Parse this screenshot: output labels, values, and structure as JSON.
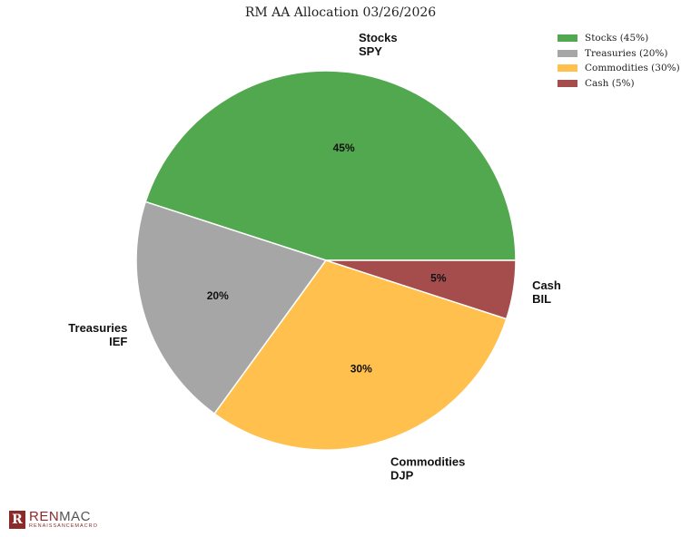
{
  "chart_data": {
    "type": "pie",
    "title": "RM AA Allocation 03/26/2026",
    "slices": [
      {
        "name": "Stocks",
        "ticker": "SPY",
        "value": 45,
        "pct_label": "45%",
        "legend": "Stocks (45%)",
        "color": "#52a84f"
      },
      {
        "name": "Treasuries",
        "ticker": "IEF",
        "value": 20,
        "pct_label": "20%",
        "legend": "Treasuries (20%)",
        "color": "#a6a6a6"
      },
      {
        "name": "Commodities",
        "ticker": "DJP",
        "value": 30,
        "pct_label": "30%",
        "legend": "Commodities (30%)",
        "color": "#ffc04d"
      },
      {
        "name": "Cash",
        "ticker": "BIL",
        "value": 5,
        "pct_label": "5%",
        "legend": "Cash (5%)",
        "color": "#a54d4d"
      }
    ],
    "start_angle_deg": 0,
    "direction": "counterclockwise",
    "legend_position": "top-right"
  },
  "logo": {
    "mark": "R",
    "main_left": "REN",
    "main_right": "MAC",
    "sub": "RENAISSANCEMACRO"
  }
}
